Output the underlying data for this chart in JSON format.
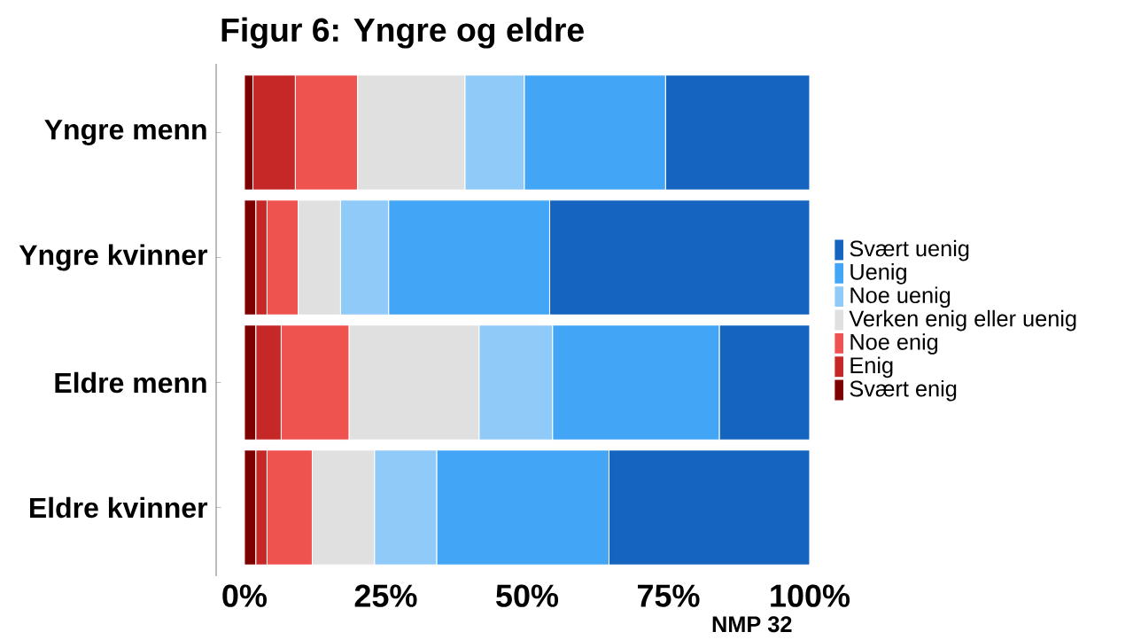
{
  "chart_data": {
    "type": "bar",
    "orientation": "horizontal",
    "stacked": true,
    "title": "Figur 6: Yngre og eldre",
    "categories": [
      "Yngre menn",
      "Yngre kvinner",
      "Eldre menn",
      "Eldre kvinner"
    ],
    "series": [
      {
        "name": "Svært enig",
        "color": "#7f0000",
        "values": [
          1.5,
          2,
          2,
          2
        ]
      },
      {
        "name": "Enig",
        "color": "#c62828",
        "values": [
          7.5,
          2,
          4.5,
          2
        ]
      },
      {
        "name": "Noe enig",
        "color": "#ef5350",
        "values": [
          11,
          5.5,
          12,
          8
        ]
      },
      {
        "name": "Verken enig eller uenig",
        "color": "#e0e0e0",
        "values": [
          19,
          7.5,
          23,
          11
        ]
      },
      {
        "name": "Noe uenig",
        "color": "#90caf9",
        "values": [
          10.5,
          8.5,
          13,
          11
        ]
      },
      {
        "name": "Uenig",
        "color": "#42a5f5",
        "values": [
          25,
          28.5,
          29.5,
          30.5
        ]
      },
      {
        "name": "Svært uenig",
        "color": "#1565c0",
        "values": [
          25.5,
          46,
          16,
          35.5
        ]
      }
    ],
    "xlim": [
      -5,
      100
    ],
    "xticks": [
      {
        "value": 0,
        "label": "0%"
      },
      {
        "value": 25,
        "label": "25%"
      },
      {
        "value": 50,
        "label": "50%"
      },
      {
        "value": 75,
        "label": "75%"
      },
      {
        "value": 100,
        "label": "100%"
      }
    ],
    "legend": "right",
    "annotations": [
      "NMP 32"
    ]
  }
}
